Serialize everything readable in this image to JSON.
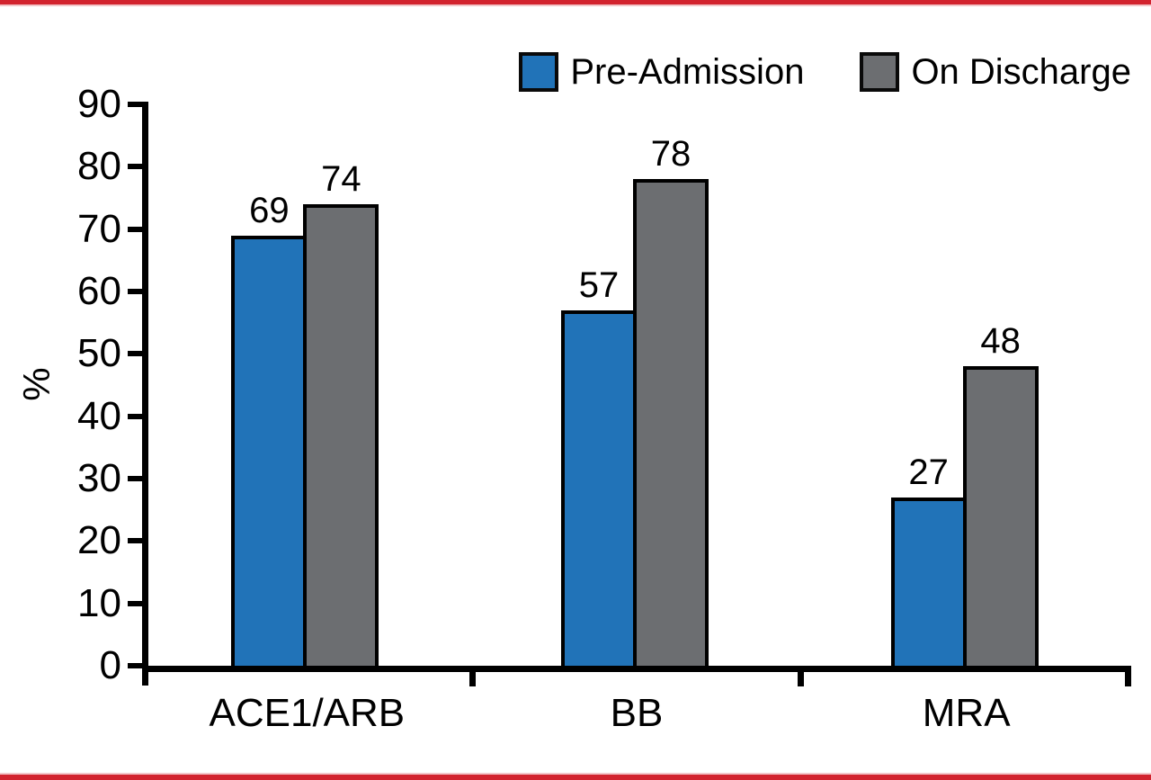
{
  "frame": {
    "top_border_color": "#d2232e",
    "bottom_border_color": "#d2232e",
    "border_accent_light": "#f2c6c9",
    "background": "#ffffff"
  },
  "chart_data": {
    "type": "bar",
    "title": "",
    "xlabel": "",
    "ylabel": "%",
    "categories": [
      "ACE1/ARB",
      "BB",
      "MRA"
    ],
    "series": [
      {
        "name": "Pre-Admission",
        "color": "#2173b8",
        "values": [
          69,
          57,
          27
        ]
      },
      {
        "name": "On Discharge",
        "color": "#6c6e71",
        "values": [
          74,
          78,
          48
        ]
      }
    ],
    "ylim": [
      0,
      90
    ],
    "yticks": [
      0,
      10,
      20,
      30,
      40,
      50,
      60,
      70,
      80,
      90
    ],
    "grid": false,
    "legend_position": "top-right",
    "bar_value_labels_shown": true,
    "axis_color": "#000000",
    "text_color": "#000000"
  }
}
